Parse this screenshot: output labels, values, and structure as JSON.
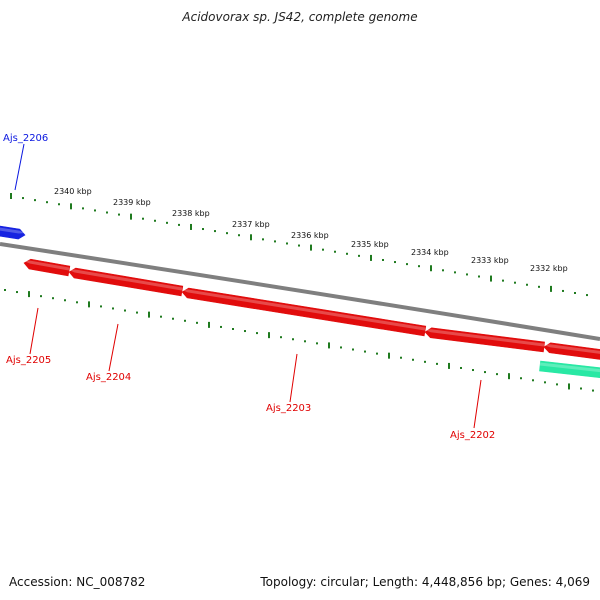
{
  "title": "Acidovorax sp. JS42, complete genome",
  "footer": {
    "accession": "Accession: NC_008782",
    "summary": "Topology: circular; Length: 4,448,856 bp; Genes: 4,069"
  },
  "colors": {
    "backbone": "#7f7f7f",
    "ticks": "#1f7a1f",
    "forward_gene": "#0b18e0",
    "reverse_gene": "#e00000",
    "rna_gene": "#1ee7a0"
  },
  "ruler": {
    "labels": [
      "2340 kbp",
      "2339 kbp",
      "2338 kbp",
      "2337 kbp",
      "2336 kbp",
      "2335 kbp",
      "2334 kbp",
      "2333 kbp",
      "2332 kbp"
    ]
  },
  "genes": [
    {
      "id": "Ajs_2206",
      "strand": "forward"
    },
    {
      "id": "Ajs_2205",
      "strand": "reverse"
    },
    {
      "id": "Ajs_2204",
      "strand": "reverse"
    },
    {
      "id": "Ajs_2203",
      "strand": "reverse"
    },
    {
      "id": "Ajs_2202",
      "strand": "reverse"
    },
    {
      "strand": "reverse"
    },
    {
      "strand": "rna"
    }
  ]
}
